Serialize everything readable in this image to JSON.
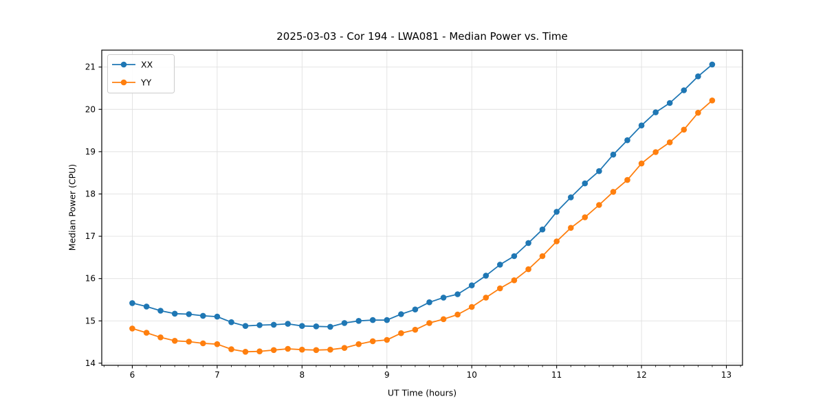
{
  "figure": {
    "title": "2025-03-03 - Cor 194 - LWA081 - Median Power vs. Time",
    "xlabel": "UT Time (hours)",
    "ylabel": "Median Power (CPU)"
  },
  "chart_data": {
    "type": "line",
    "title": "2025-03-03 - Cor 194 - LWA081 - Median Power vs. Time",
    "xlabel": "UT Time (hours)",
    "ylabel": "Median Power (CPU)",
    "x": [
      6.0,
      6.167,
      6.333,
      6.5,
      6.667,
      6.833,
      7.0,
      7.167,
      7.333,
      7.5,
      7.667,
      7.833,
      8.0,
      8.167,
      8.333,
      8.5,
      8.667,
      8.833,
      9.0,
      9.167,
      9.333,
      9.5,
      9.667,
      9.833,
      10.0,
      10.167,
      10.333,
      10.5,
      10.667,
      10.833,
      11.0,
      11.167,
      11.333,
      11.5,
      11.667,
      11.833,
      12.0,
      12.167,
      12.333,
      12.5,
      12.667,
      12.833
    ],
    "series": [
      {
        "name": "XX",
        "color": "#1f77b4",
        "values": [
          15.42,
          15.34,
          15.24,
          15.17,
          15.16,
          15.12,
          15.1,
          14.97,
          14.88,
          14.9,
          14.91,
          14.93,
          14.88,
          14.87,
          14.86,
          14.95,
          15.0,
          15.02,
          15.02,
          15.16,
          15.27,
          15.44,
          15.55,
          15.63,
          15.84,
          16.07,
          16.33,
          16.53,
          16.84,
          17.16,
          17.58,
          17.92,
          18.25,
          18.54,
          18.93,
          19.27,
          19.62,
          19.93,
          20.15,
          20.45,
          20.78,
          21.06
        ]
      },
      {
        "name": "YY",
        "color": "#ff7f0e",
        "values": [
          14.82,
          14.72,
          14.61,
          14.53,
          14.51,
          14.47,
          14.45,
          14.33,
          14.27,
          14.28,
          14.31,
          14.34,
          14.32,
          14.31,
          14.32,
          14.36,
          14.45,
          14.52,
          14.55,
          14.71,
          14.79,
          14.95,
          15.04,
          15.15,
          15.33,
          15.55,
          15.77,
          15.96,
          16.22,
          16.53,
          16.88,
          17.2,
          17.45,
          17.74,
          18.05,
          18.33,
          18.72,
          18.99,
          19.22,
          19.52,
          19.92,
          20.21
        ]
      }
    ],
    "xticks": [
      6,
      7,
      8,
      9,
      10,
      11,
      12,
      13
    ],
    "yticks": [
      14,
      15,
      16,
      17,
      18,
      19,
      20,
      21
    ],
    "xlim": [
      5.64,
      13.19
    ],
    "ylim": [
      13.95,
      21.4
    ],
    "x_minor_tick_step": 0.1667,
    "grid": true,
    "legend_position": "upper left",
    "marker": "o",
    "grid_color": "#e0e0e0",
    "spine_color": "#000000",
    "background_color": "#ffffff"
  }
}
